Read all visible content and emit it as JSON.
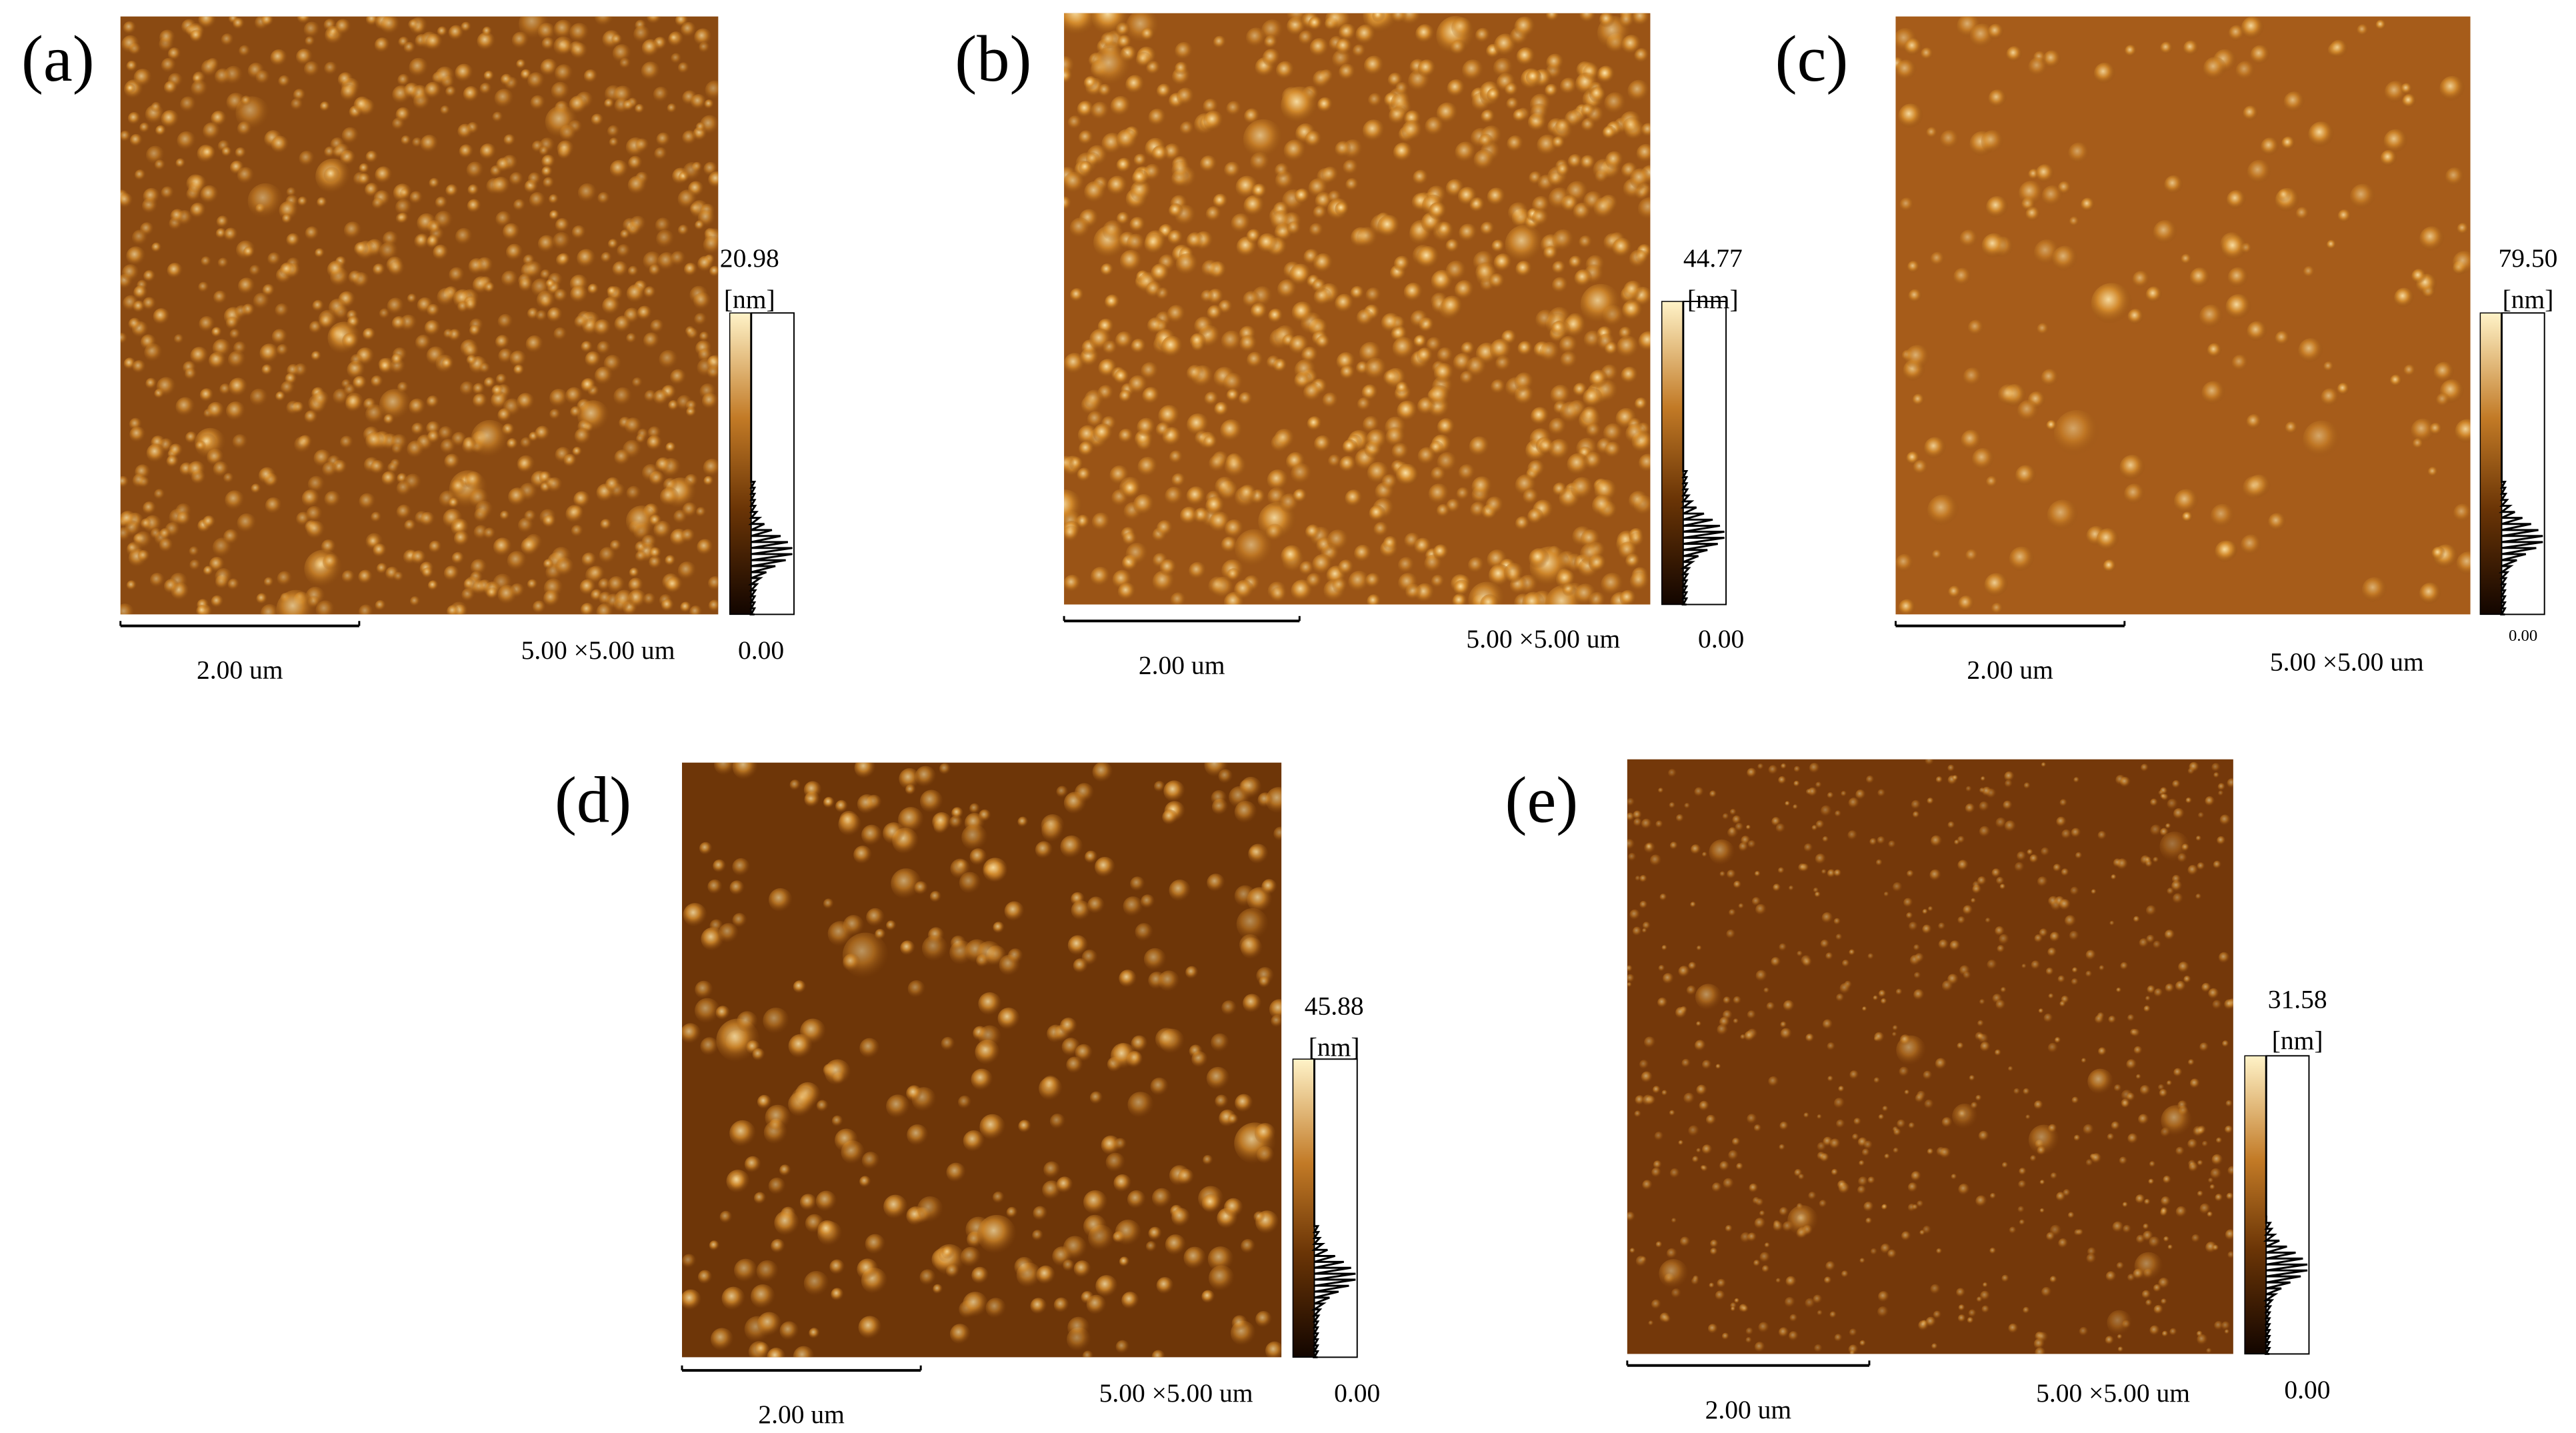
{
  "panels": [
    {
      "label": "(a)",
      "max": "20.98",
      "unit": "[nm]",
      "min": "0.00",
      "scale_bar": "2.00 um",
      "scan_size": "5.00 ×5.00 um"
    },
    {
      "label": "(b)",
      "max": "44.77",
      "unit": "[nm]",
      "min": "0.00",
      "scale_bar": "2.00 um",
      "scan_size": "5.00 ×5.00 um"
    },
    {
      "label": "(c)",
      "max": "79.50",
      "unit": "[nm]",
      "min": "0.00",
      "scale_bar": "2.00 um",
      "scan_size": "5.00 ×5.00 um"
    },
    {
      "label": "(d)",
      "max": "45.88",
      "unit": "[nm]",
      "min": "0.00",
      "scale_bar": "2.00 um",
      "scan_size": "5.00 ×5.00 um"
    },
    {
      "label": "(e)",
      "max": "31.58",
      "unit": "[nm]",
      "min": "0.00",
      "scale_bar": "2.00 um",
      "scan_size": "5.00 ×5.00 um"
    }
  ]
}
